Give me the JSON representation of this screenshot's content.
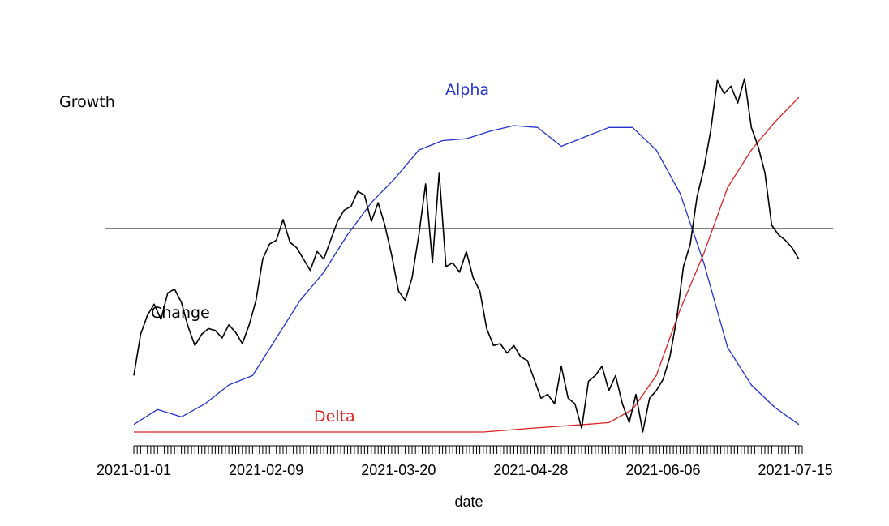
{
  "chart_data": {
    "type": "line",
    "title": "",
    "xlabel": "date",
    "ylabel": "",
    "grid": false,
    "legend": "none",
    "x_range": [
      "2021-01-01",
      "2021-07-17"
    ],
    "x_tick_labels": [
      "2021-01-01",
      "2021-02-09",
      "2021-03-20",
      "2021-04-28",
      "2021-06-06",
      "2021-07-15"
    ],
    "reference_line": {
      "y": 0
    },
    "labels": {
      "growth": "Growth",
      "change": "Change",
      "alpha": "Alpha",
      "delta": "Delta"
    },
    "colors": {
      "change": "#000000",
      "alpha": "#2233cc",
      "delta": "#dd2222",
      "reference": "#000000"
    },
    "series": [
      {
        "name": "Alpha",
        "color": "#2233cc",
        "points": [
          [
            "2021-01-01",
            0.04
          ],
          [
            "2021-01-08",
            0.12
          ],
          [
            "2021-01-15",
            0.08
          ],
          [
            "2021-01-22",
            0.15
          ],
          [
            "2021-01-29",
            0.25
          ],
          [
            "2021-02-05",
            0.3
          ],
          [
            "2021-02-12",
            0.5
          ],
          [
            "2021-02-19",
            0.7
          ],
          [
            "2021-02-26",
            0.85
          ],
          [
            "2021-03-05",
            1.05
          ],
          [
            "2021-03-12",
            1.22
          ],
          [
            "2021-03-19",
            1.35
          ],
          [
            "2021-03-26",
            1.5
          ],
          [
            "2021-04-02",
            1.55
          ],
          [
            "2021-04-09",
            1.56
          ],
          [
            "2021-04-16",
            1.6
          ],
          [
            "2021-04-23",
            1.63
          ],
          [
            "2021-04-30",
            1.62
          ],
          [
            "2021-05-07",
            1.52
          ],
          [
            "2021-05-14",
            1.57
          ],
          [
            "2021-05-21",
            1.62
          ],
          [
            "2021-05-28",
            1.62
          ],
          [
            "2021-06-04",
            1.5
          ],
          [
            "2021-06-11",
            1.27
          ],
          [
            "2021-06-18",
            0.9
          ],
          [
            "2021-06-25",
            0.45
          ],
          [
            "2021-07-02",
            0.25
          ],
          [
            "2021-07-09",
            0.13
          ],
          [
            "2021-07-16",
            0.04
          ]
        ]
      },
      {
        "name": "Delta",
        "color": "#dd2222",
        "points": [
          [
            "2021-01-01",
            0.0
          ],
          [
            "2021-04-14",
            0.0
          ],
          [
            "2021-04-28",
            0.02
          ],
          [
            "2021-05-14",
            0.04
          ],
          [
            "2021-05-21",
            0.05
          ],
          [
            "2021-05-28",
            0.12
          ],
          [
            "2021-06-04",
            0.3
          ],
          [
            "2021-06-11",
            0.65
          ],
          [
            "2021-06-18",
            0.95
          ],
          [
            "2021-06-25",
            1.3
          ],
          [
            "2021-07-02",
            1.5
          ],
          [
            "2021-07-09",
            1.65
          ],
          [
            "2021-07-16",
            1.78
          ]
        ]
      },
      {
        "name": "Change",
        "color": "#000000",
        "points": [
          [
            "2021-01-01",
            0.3
          ],
          [
            "2021-01-03",
            0.52
          ],
          [
            "2021-01-05",
            0.62
          ],
          [
            "2021-01-07",
            0.68
          ],
          [
            "2021-01-09",
            0.6
          ],
          [
            "2021-01-11",
            0.74
          ],
          [
            "2021-01-13",
            0.76
          ],
          [
            "2021-01-15",
            0.69
          ],
          [
            "2021-01-17",
            0.56
          ],
          [
            "2021-01-19",
            0.46
          ],
          [
            "2021-01-21",
            0.52
          ],
          [
            "2021-01-23",
            0.55
          ],
          [
            "2021-01-25",
            0.54
          ],
          [
            "2021-01-27",
            0.5
          ],
          [
            "2021-01-29",
            0.57
          ],
          [
            "2021-01-31",
            0.53
          ],
          [
            "2021-02-02",
            0.47
          ],
          [
            "2021-02-04",
            0.57
          ],
          [
            "2021-02-06",
            0.7
          ],
          [
            "2021-02-08",
            0.92
          ],
          [
            "2021-02-10",
            1.0
          ],
          [
            "2021-02-12",
            1.02
          ],
          [
            "2021-02-14",
            1.13
          ],
          [
            "2021-02-16",
            1.01
          ],
          [
            "2021-02-18",
            0.98
          ],
          [
            "2021-02-20",
            0.92
          ],
          [
            "2021-02-22",
            0.86
          ],
          [
            "2021-02-24",
            0.96
          ],
          [
            "2021-02-26",
            0.92
          ],
          [
            "2021-02-28",
            1.02
          ],
          [
            "2021-03-02",
            1.12
          ],
          [
            "2021-03-04",
            1.18
          ],
          [
            "2021-03-06",
            1.2
          ],
          [
            "2021-03-08",
            1.28
          ],
          [
            "2021-03-10",
            1.26
          ],
          [
            "2021-03-12",
            1.12
          ],
          [
            "2021-03-14",
            1.22
          ],
          [
            "2021-03-16",
            1.1
          ],
          [
            "2021-03-18",
            0.94
          ],
          [
            "2021-03-20",
            0.75
          ],
          [
            "2021-03-22",
            0.7
          ],
          [
            "2021-03-24",
            0.82
          ],
          [
            "2021-03-26",
            1.05
          ],
          [
            "2021-03-28",
            1.32
          ],
          [
            "2021-03-30",
            0.9
          ],
          [
            "2021-04-01",
            1.38
          ],
          [
            "2021-04-03",
            0.88
          ],
          [
            "2021-04-05",
            0.9
          ],
          [
            "2021-04-07",
            0.85
          ],
          [
            "2021-04-09",
            0.96
          ],
          [
            "2021-04-11",
            0.82
          ],
          [
            "2021-04-13",
            0.75
          ],
          [
            "2021-04-15",
            0.55
          ],
          [
            "2021-04-17",
            0.46
          ],
          [
            "2021-04-19",
            0.47
          ],
          [
            "2021-04-21",
            0.42
          ],
          [
            "2021-04-23",
            0.46
          ],
          [
            "2021-04-25",
            0.4
          ],
          [
            "2021-04-27",
            0.38
          ],
          [
            "2021-04-29",
            0.28
          ],
          [
            "2021-05-01",
            0.18
          ],
          [
            "2021-05-03",
            0.2
          ],
          [
            "2021-05-05",
            0.15
          ],
          [
            "2021-05-07",
            0.35
          ],
          [
            "2021-05-09",
            0.18
          ],
          [
            "2021-05-11",
            0.15
          ],
          [
            "2021-05-13",
            0.02
          ],
          [
            "2021-05-15",
            0.27
          ],
          [
            "2021-05-17",
            0.3
          ],
          [
            "2021-05-19",
            0.35
          ],
          [
            "2021-05-21",
            0.22
          ],
          [
            "2021-05-23",
            0.3
          ],
          [
            "2021-05-25",
            0.15
          ],
          [
            "2021-05-27",
            0.05
          ],
          [
            "2021-05-29",
            0.2
          ],
          [
            "2021-05-31",
            0.0
          ],
          [
            "2021-06-02",
            0.18
          ],
          [
            "2021-06-04",
            0.22
          ],
          [
            "2021-06-06",
            0.28
          ],
          [
            "2021-06-08",
            0.4
          ],
          [
            "2021-06-10",
            0.6
          ],
          [
            "2021-06-12",
            0.88
          ],
          [
            "2021-06-14",
            1.0
          ],
          [
            "2021-06-16",
            1.25
          ],
          [
            "2021-06-18",
            1.4
          ],
          [
            "2021-06-20",
            1.6
          ],
          [
            "2021-06-22",
            1.87
          ],
          [
            "2021-06-24",
            1.8
          ],
          [
            "2021-06-26",
            1.84
          ],
          [
            "2021-06-28",
            1.75
          ],
          [
            "2021-06-30",
            1.88
          ],
          [
            "2021-07-02",
            1.62
          ],
          [
            "2021-07-04",
            1.52
          ],
          [
            "2021-07-06",
            1.38
          ],
          [
            "2021-07-08",
            1.1
          ],
          [
            "2021-07-10",
            1.05
          ],
          [
            "2021-07-12",
            1.02
          ],
          [
            "2021-07-14",
            0.98
          ],
          [
            "2021-07-16",
            0.92
          ]
        ]
      }
    ]
  }
}
